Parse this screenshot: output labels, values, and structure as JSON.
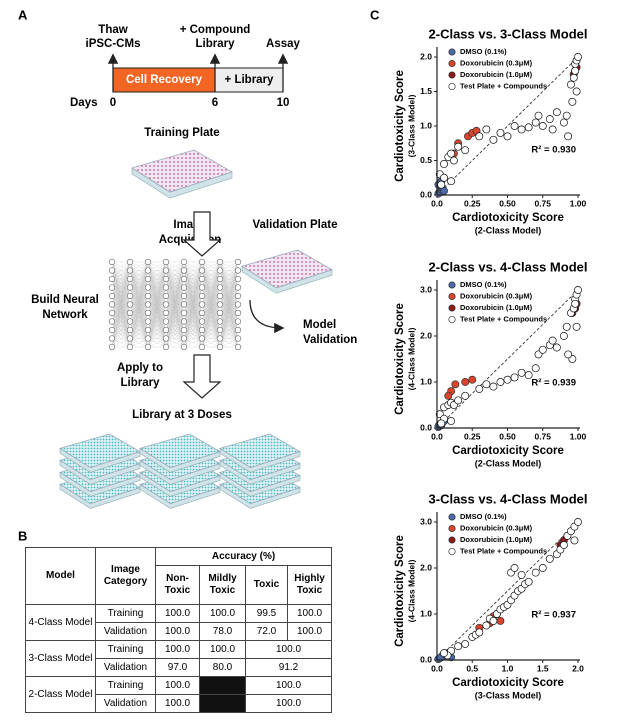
{
  "panel_a": {
    "label": "A",
    "thaw": [
      "Thaw",
      "iPSC-CMs"
    ],
    "compound": [
      "+ Compound",
      "Library"
    ],
    "assay": "Assay",
    "cell_recovery": "Cell Recovery",
    "library_phase": "+ Library",
    "days_label": "Days",
    "days": [
      0,
      6,
      10
    ],
    "training_plate": "Training Plate",
    "image_acquisition": [
      "Image",
      "Acquisition"
    ],
    "validation_plate": "Validation Plate",
    "build_network": [
      "Build Neural",
      "Network"
    ],
    "model_validation": [
      "Model",
      "Validation"
    ],
    "apply": [
      "Apply to",
      "Library"
    ],
    "library_doses": "Library at 3 Doses"
  },
  "panel_b": {
    "label": "B",
    "headers": {
      "model": "Model",
      "category": "Image Category",
      "accuracy": "Accuracy (%)",
      "classes": [
        "Non-Toxic",
        "Mildly Toxic",
        "Toxic",
        "Highly Toxic"
      ]
    },
    "rows": [
      {
        "model": "4-Class Model",
        "category": "Training",
        "values": [
          "100.0",
          "100.0",
          "99.5",
          "100.0"
        ]
      },
      {
        "category": "Validation",
        "values": [
          "100.0",
          "78.0",
          "72.0",
          "100.0"
        ]
      },
      {
        "model": "3-Class Model",
        "category": "Training",
        "values": [
          "100.0",
          "100.0",
          "100.0"
        ]
      },
      {
        "category": "Validation",
        "values": [
          "97.0",
          "80.0",
          "91.2"
        ]
      },
      {
        "model": "2-Class Model",
        "category": "Training",
        "values": [
          "100.0",
          "100.0"
        ]
      },
      {
        "category": "Validation",
        "values": [
          "100.0",
          "100.0"
        ]
      }
    ]
  },
  "panel_c_label": "C",
  "chart_data": [
    {
      "type": "scatter",
      "title": "2-Class vs. 3-Class Model",
      "xlabel": "Cardiotoxicity Score",
      "xlabel_sub": "(2-Class Model)",
      "ylabel": "Cardiotoxicity Score",
      "ylabel_sub": "(3-Class Model)",
      "annotation": "R² = 0.930",
      "xlim": [
        0,
        1
      ],
      "xticks": [
        {
          "value": 0,
          "label": "0.0"
        },
        0.25,
        {
          "value": 0.5,
          "label": "0.50"
        },
        0.75,
        {
          "value": 1,
          "label": "1.00"
        }
      ],
      "ylim": [
        0,
        2
      ],
      "yticks": [
        {
          "value": 0,
          "label": "0.0"
        },
        0.5,
        {
          "value": 1,
          "label": "1.0"
        },
        1.5,
        {
          "value": 2,
          "label": "2.0"
        }
      ],
      "series": [
        {
          "name": "DMSO (0.1%)",
          "color": "#4a6aa8",
          "x": [
            0.01,
            0.02,
            0.03,
            0.02,
            0.04,
            0.01,
            0.05,
            0.03
          ],
          "values": [
            0.02,
            0.05,
            0.08,
            0.12,
            0.1,
            0.15,
            0.06,
            0.2
          ]
        },
        {
          "name": "Doxorubicin (0.3μM)",
          "color": "#d9442c",
          "x": [
            0.15,
            0.22,
            0.25,
            0.28,
            0.12
          ],
          "values": [
            0.75,
            0.85,
            0.9,
            0.93,
            0.6
          ]
        },
        {
          "name": "Doxorubicin (1.0μM)",
          "color": "#8b1a1a",
          "x": [
            0.97,
            0.98,
            0.99
          ],
          "values": [
            1.75,
            1.8,
            1.85
          ]
        },
        {
          "name": "Test Plate + Compounds",
          "color": "#ffffff",
          "x": [
            0.02,
            0.05,
            0.08,
            0.1,
            0.12,
            0.15,
            0.2,
            0.3,
            0.35,
            0.4,
            0.45,
            0.5,
            0.55,
            0.6,
            0.65,
            0.7,
            0.72,
            0.75,
            0.8,
            0.82,
            0.85,
            0.9,
            0.92,
            0.95,
            0.97,
            0.98,
            0.99,
            1.0,
            0.99,
            0.96,
            0.1,
            0.05,
            0.03,
            0.98,
            0.93
          ],
          "values": [
            0.3,
            0.45,
            0.55,
            0.6,
            0.5,
            0.7,
            0.65,
            0.85,
            0.95,
            0.8,
            0.9,
            0.85,
            1.0,
            0.95,
            0.98,
            1.05,
            1.15,
            1.0,
            1.1,
            0.95,
            1.2,
            1.05,
            1.15,
            1.6,
            1.7,
            1.9,
            1.95,
            2.0,
            1.5,
            1.35,
            0.2,
            0.25,
            0.15,
            1.8,
            0.85
          ]
        }
      ]
    },
    {
      "type": "scatter",
      "title": "2-Class vs. 4-Class Model",
      "xlabel": "Cardiotoxicity Score",
      "xlabel_sub": "(2-Class Model)",
      "ylabel": "Cardiotoxicity Score",
      "ylabel_sub": "(4-Class Model)",
      "annotation": "R² = 0.939",
      "xlim": [
        0,
        1
      ],
      "xticks": [
        {
          "value": 0,
          "label": "0.0"
        },
        0.25,
        {
          "value": 0.5,
          "label": "0.50"
        },
        0.75,
        {
          "value": 1,
          "label": "1.00"
        }
      ],
      "ylim": [
        0,
        3
      ],
      "yticks": [
        {
          "value": 0,
          "label": "0.0"
        },
        {
          "value": 1,
          "label": "1.0"
        },
        {
          "value": 2,
          "label": "2.0"
        },
        {
          "value": 3,
          "label": "3.0"
        }
      ],
      "series": [
        {
          "name": "DMSO (0.1%)",
          "color": "#4a6aa8",
          "x": [
            0.01,
            0.02,
            0.03,
            0.02,
            0.04,
            0.01,
            0.05,
            0.03
          ],
          "values": [
            0.02,
            0.05,
            0.1,
            0.08,
            0.12,
            0.04,
            0.15,
            0.06
          ]
        },
        {
          "name": "Doxorubicin (0.3μM)",
          "color": "#d9442c",
          "x": [
            0.1,
            0.13,
            0.2,
            0.25,
            0.08
          ],
          "values": [
            0.8,
            0.95,
            1.0,
            1.05,
            0.7
          ]
        },
        {
          "name": "Doxorubicin (1.0μM)",
          "color": "#8b1a1a",
          "x": [
            0.96,
            0.98,
            0.99
          ],
          "values": [
            2.5,
            2.6,
            2.7
          ]
        },
        {
          "name": "Test Plate + Compounds",
          "color": "#ffffff",
          "x": [
            0.02,
            0.05,
            0.08,
            0.1,
            0.12,
            0.15,
            0.2,
            0.3,
            0.35,
            0.4,
            0.45,
            0.5,
            0.55,
            0.6,
            0.65,
            0.7,
            0.72,
            0.75,
            0.8,
            0.82,
            0.85,
            0.9,
            0.92,
            0.95,
            0.97,
            0.98,
            0.99,
            1.0,
            0.99,
            0.96,
            0.1,
            0.05,
            0.03,
            0.98,
            0.93
          ],
          "values": [
            0.3,
            0.45,
            0.5,
            0.55,
            0.5,
            0.6,
            0.7,
            0.85,
            0.95,
            0.9,
            1.0,
            1.05,
            1.1,
            1.2,
            1.15,
            1.3,
            1.6,
            1.7,
            1.8,
            1.9,
            1.75,
            2.0,
            2.2,
            2.5,
            2.6,
            2.8,
            2.9,
            3.0,
            2.2,
            1.5,
            0.15,
            0.2,
            0.1,
            2.7,
            1.6
          ]
        }
      ]
    },
    {
      "type": "scatter",
      "title": "3-Class vs. 4-Class Model",
      "xlabel": "Cardiotoxicity Score",
      "xlabel_sub": "(3-Class Model)",
      "ylabel": "Cardiotoxicity Score",
      "ylabel_sub": "(4-Class Model)",
      "annotation": "R² = 0.937",
      "xlim": [
        0,
        2
      ],
      "xticks": [
        {
          "value": 0,
          "label": "0.0"
        },
        0.5,
        {
          "value": 1,
          "label": "1.0"
        },
        1.5,
        {
          "value": 2,
          "label": "2.0"
        }
      ],
      "ylim": [
        0,
        3
      ],
      "yticks": [
        {
          "value": 0,
          "label": "0.0"
        },
        {
          "value": 1,
          "label": "1.0"
        },
        {
          "value": 2,
          "label": "2.0"
        },
        {
          "value": 3,
          "label": "3.0"
        }
      ],
      "series": [
        {
          "name": "DMSO (0.1%)",
          "color": "#4a6aa8",
          "x": [
            0.02,
            0.05,
            0.08,
            0.1,
            0.12,
            0.04,
            0.15,
            0.2
          ],
          "values": [
            0.02,
            0.05,
            0.1,
            0.08,
            0.12,
            0.04,
            0.15,
            0.06
          ]
        },
        {
          "name": "Doxorubicin (0.3μM)",
          "color": "#d9442c",
          "x": [
            0.6,
            0.75,
            0.8,
            0.85,
            0.9
          ],
          "values": [
            0.7,
            0.8,
            0.95,
            1.0,
            0.85
          ]
        },
        {
          "name": "Doxorubicin (1.0μM)",
          "color": "#8b1a1a",
          "x": [
            1.75,
            1.8,
            1.85
          ],
          "values": [
            2.5,
            2.6,
            2.7
          ]
        },
        {
          "name": "Test Plate + Compounds",
          "color": "#ffffff",
          "x": [
            0.2,
            0.3,
            0.4,
            0.5,
            0.55,
            0.6,
            0.7,
            0.75,
            0.8,
            0.85,
            0.9,
            0.95,
            1.0,
            1.05,
            1.1,
            1.15,
            1.2,
            1.25,
            1.3,
            1.4,
            1.5,
            1.6,
            1.7,
            1.75,
            1.8,
            1.85,
            1.9,
            1.95,
            2.0,
            1.95,
            1.05,
            1.1,
            1.2,
            0.15,
            0.1
          ],
          "values": [
            0.2,
            0.3,
            0.35,
            0.5,
            0.55,
            0.6,
            0.75,
            0.9,
            0.85,
            1.0,
            1.1,
            1.15,
            1.2,
            1.3,
            1.4,
            1.5,
            1.55,
            1.65,
            1.7,
            1.9,
            2.0,
            2.2,
            2.3,
            2.4,
            2.5,
            2.7,
            2.8,
            2.9,
            3.0,
            2.6,
            1.9,
            2.0,
            1.85,
            0.1,
            0.15
          ]
        }
      ]
    }
  ]
}
